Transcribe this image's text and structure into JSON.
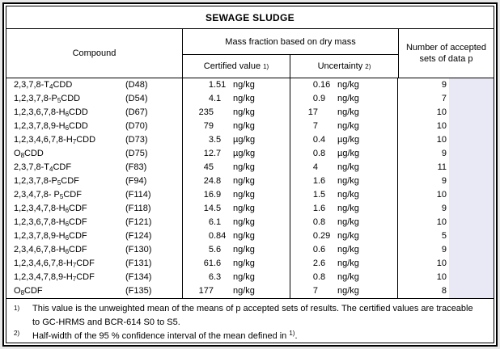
{
  "title": "SEWAGE SLUDGE",
  "header": {
    "compound": "Compound",
    "mass_fraction": "Mass fraction based on dry mass",
    "certified_value": "Certified value",
    "certified_value_ref": "1)",
    "uncertainty": "Uncertainty",
    "uncertainty_ref": "2)",
    "accepted_sets": "Number of accepted sets of data p"
  },
  "rows": [
    {
      "name_pre": "2,3,7,8-T",
      "name_sub": "4",
      "name_post": "CDD",
      "code": "(D48)",
      "certified": "1.51",
      "certified_unit": "ng/kg",
      "uncertainty": "0.16",
      "uncertainty_unit": "ng/kg",
      "sets": "9"
    },
    {
      "name_pre": "1,2,3,7,8-P",
      "name_sub": "5",
      "name_post": "CDD",
      "code": "(D54)",
      "certified": "4.1",
      "certified_unit": "ng/kg",
      "uncertainty": "0.9",
      "uncertainty_unit": "ng/kg",
      "sets": "7"
    },
    {
      "name_pre": "1,2,3,6,7,8-H",
      "name_sub": "6",
      "name_post": "CDD",
      "code": "(D67)",
      "certified": "235",
      "certified_unit": "ng/kg",
      "uncertainty": "17",
      "uncertainty_unit": "ng/kg",
      "sets": "10"
    },
    {
      "name_pre": "1,2,3,7,8,9-H",
      "name_sub": "6",
      "name_post": "CDD",
      "code": "(D70)",
      "certified": "79",
      "certified_unit": "ng/kg",
      "uncertainty": "7",
      "uncertainty_unit": "ng/kg",
      "sets": "10"
    },
    {
      "name_pre": "1,2,3,4,6,7,8-H",
      "name_sub": "7",
      "name_post": "CDD",
      "code": "(D73)",
      "certified": "3.5",
      "certified_unit": "µg/kg",
      "uncertainty": "0.4",
      "uncertainty_unit": "µg/kg",
      "sets": "10"
    },
    {
      "name_pre": "O",
      "name_sub": "8",
      "name_post": "CDD",
      "code": "(D75)",
      "certified": "12.7",
      "certified_unit": "µg/kg",
      "uncertainty": "0.8",
      "uncertainty_unit": "µg/kg",
      "sets": "9"
    },
    {
      "name_pre": "2,3,7,8-T",
      "name_sub": "4",
      "name_post": "CDF",
      "code": "(F83)",
      "certified": "45",
      "certified_unit": "ng/kg",
      "uncertainty": "4",
      "uncertainty_unit": "ng/kg",
      "sets": "11"
    },
    {
      "name_pre": "1,2,3,7,8-P",
      "name_sub": "5",
      "name_post": "CDF",
      "code": "(F94)",
      "certified": "24.8",
      "certified_unit": "ng/kg",
      "uncertainty": "1.6",
      "uncertainty_unit": "ng/kg",
      "sets": "9"
    },
    {
      "name_pre": "2,3,4,7,8- P",
      "name_sub": "5",
      "name_post": "CDF",
      "code": "(F114)",
      "certified": "16.9",
      "certified_unit": "ng/kg",
      "uncertainty": "1.5",
      "uncertainty_unit": "ng/kg",
      "sets": "10"
    },
    {
      "name_pre": "1,2,3,4,7,8-H",
      "name_sub": "6",
      "name_post": "CDF",
      "code": "(F118)",
      "certified": "14.5",
      "certified_unit": "ng/kg",
      "uncertainty": "1.6",
      "uncertainty_unit": "ng/kg",
      "sets": "9"
    },
    {
      "name_pre": "1,2,3,6,7,8-H",
      "name_sub": "6",
      "name_post": "CDF",
      "code": "(F121)",
      "certified": "6.1",
      "certified_unit": "ng/kg",
      "uncertainty": "0.8",
      "uncertainty_unit": "ng/kg",
      "sets": "10"
    },
    {
      "name_pre": "1,2,3,7,8,9-H",
      "name_sub": "6",
      "name_post": "CDF",
      "code": "(F124)",
      "certified": "0.84",
      "certified_unit": "ng/kg",
      "uncertainty": "0.29",
      "uncertainty_unit": "ng/kg",
      "sets": "5"
    },
    {
      "name_pre": "2,3,4,6,7,8-H",
      "name_sub": "6",
      "name_post": "CDF",
      "code": "(F130)",
      "certified": "5.6",
      "certified_unit": "ng/kg",
      "uncertainty": "0.6",
      "uncertainty_unit": "ng/kg",
      "sets": "9"
    },
    {
      "name_pre": "1,2,3,4,6,7,8-H",
      "name_sub": "7",
      "name_post": "CDF",
      "code": "(F131)",
      "certified": "61.6",
      "certified_unit": "ng/kg",
      "uncertainty": "2.6",
      "uncertainty_unit": "ng/kg",
      "sets": "10"
    },
    {
      "name_pre": "1,2,3,4,7,8,9-H",
      "name_sub": "7",
      "name_post": "CDF",
      "code": "(F134)",
      "certified": "6.3",
      "certified_unit": "ng/kg",
      "uncertainty": "0.8",
      "uncertainty_unit": "ng/kg",
      "sets": "10"
    },
    {
      "name_pre": "O",
      "name_sub": "8",
      "name_post": "CDF",
      "code": "(F135)",
      "certified": "177",
      "certified_unit": "ng/kg",
      "uncertainty": "7",
      "uncertainty_unit": "ng/kg",
      "sets": "8"
    }
  ],
  "footnotes": [
    {
      "marker": "1)",
      "text": "This value is the unweighted mean of the means of p accepted sets of results. The certified values are traceable to GC-HRMS and BCR-614 S0 to S5.",
      "ref": "",
      "text_after": ""
    },
    {
      "marker": "2)",
      "text": "Half-width of the 95 % confidence interval of the mean defined in ",
      "ref": "1)",
      "text_after": "."
    }
  ],
  "colors": {
    "highlight": "#e8e9f5",
    "page_background": "#e8e8e8",
    "border": "#000000",
    "table_background": "#ffffff"
  }
}
